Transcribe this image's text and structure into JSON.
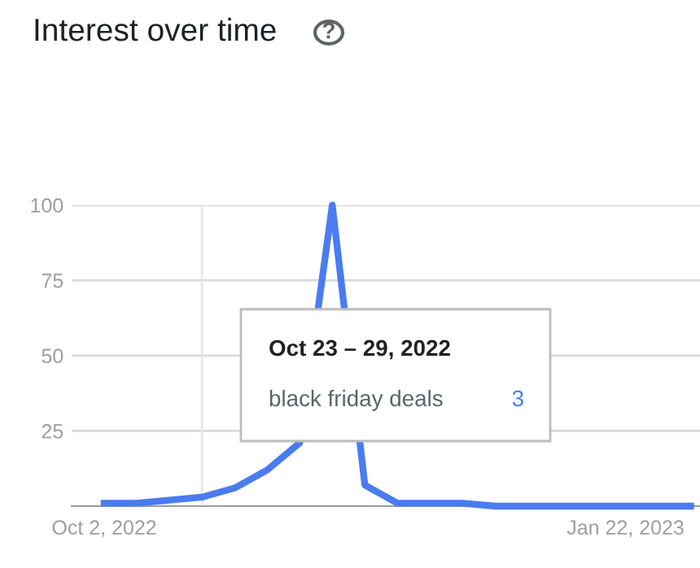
{
  "chart_data": {
    "type": "line",
    "title": "Interest over time",
    "x": [
      "2022-10-02",
      "2022-10-09",
      "2022-10-16",
      "2022-10-23",
      "2022-10-30",
      "2022-11-06",
      "2022-11-13",
      "2022-11-20",
      "2022-11-27",
      "2022-12-04",
      "2022-12-11",
      "2022-12-18",
      "2022-12-25",
      "2023-01-01",
      "2023-01-08",
      "2023-01-15",
      "2023-01-22",
      "2023-01-29",
      "2023-02-05"
    ],
    "series": [
      {
        "name": "black friday deals",
        "color": "#4a7cf0",
        "values": [
          1,
          1,
          2,
          3,
          6,
          12,
          21,
          100,
          7,
          1,
          1,
          1,
          0,
          0,
          0,
          0,
          0,
          0,
          0
        ]
      }
    ],
    "annotations": [
      "Oct 23 – 29, 2022",
      "3",
      "?"
    ],
    "ref_lines": [
      {
        "axis": "x",
        "value": "2022-10-23",
        "label": null,
        "color": "#e6e6e6"
      }
    ],
    "xlim": [
      "2022-09-25",
      "2023-02-07"
    ],
    "xticks": [
      {
        "value": "2022-10-02",
        "label": "Oct 2, 2022"
      },
      {
        "value": "2023-01-22",
        "label": "Jan 22, 2023"
      }
    ],
    "ylim": [
      0,
      100
    ],
    "yticks": [
      {
        "value": 0,
        "label": null
      },
      25,
      50,
      75,
      100
    ],
    "grid": "y",
    "legend": false,
    "marker": "none",
    "line_style": "solid"
  }
}
